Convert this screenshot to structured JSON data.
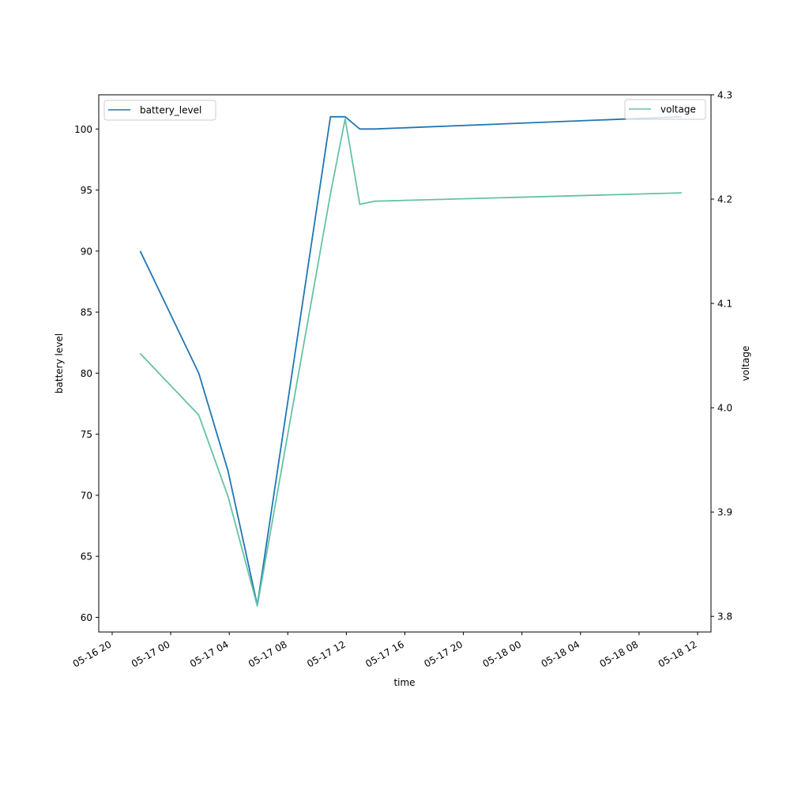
{
  "chart_data": {
    "type": "line",
    "xlabel": "time",
    "ylabel_left": "battery level",
    "ylabel_right": "voltage",
    "x_ticks": [
      "05-16 20",
      "05-17 00",
      "05-17 04",
      "05-17 08",
      "05-17 12",
      "05-17 16",
      "05-17 20",
      "05-18 00",
      "05-18 04",
      "05-18 08",
      "05-18 12"
    ],
    "x_range": [
      "05-16 19:05",
      "05-18 12:55"
    ],
    "y_left": {
      "range": [
        58.8,
        102.8
      ],
      "ticks": [
        "60",
        "65",
        "70",
        "75",
        "80",
        "85",
        "90",
        "95",
        "100"
      ]
    },
    "y_right": {
      "range": [
        3.785,
        4.3
      ],
      "ticks": [
        "3.8",
        "3.9",
        "4.0",
        "4.1",
        "4.2",
        "4.3"
      ]
    },
    "grid": false,
    "series": [
      {
        "name": "battery_level",
        "axis": "left",
        "color": "#1f77b4",
        "legend_position": "top-left",
        "points": [
          {
            "x": "05-16 21:55",
            "y": 90
          },
          {
            "x": "05-17 01:55",
            "y": 80
          },
          {
            "x": "05-17 03:55",
            "y": 72
          },
          {
            "x": "05-17 05:55",
            "y": 61
          },
          {
            "x": "05-17 10:55",
            "y": 101
          },
          {
            "x": "05-17 11:55",
            "y": 101
          },
          {
            "x": "05-17 12:55",
            "y": 100
          },
          {
            "x": "05-17 13:55",
            "y": 100
          },
          {
            "x": "05-18 10:55",
            "y": 101
          }
        ]
      },
      {
        "name": "voltage",
        "axis": "right",
        "color": "#66c2a5",
        "legend_position": "top-right",
        "points": [
          {
            "x": "05-16 21:55",
            "y": 4.052
          },
          {
            "x": "05-17 01:55",
            "y": 3.993
          },
          {
            "x": "05-17 03:55",
            "y": 3.915
          },
          {
            "x": "05-17 05:55",
            "y": 3.81
          },
          {
            "x": "05-17 10:55",
            "y": 4.205
          },
          {
            "x": "05-17 11:55",
            "y": 4.277
          },
          {
            "x": "05-17 12:55",
            "y": 4.195
          },
          {
            "x": "05-17 13:55",
            "y": 4.198
          },
          {
            "x": "05-18 10:55",
            "y": 4.206
          }
        ]
      }
    ]
  }
}
